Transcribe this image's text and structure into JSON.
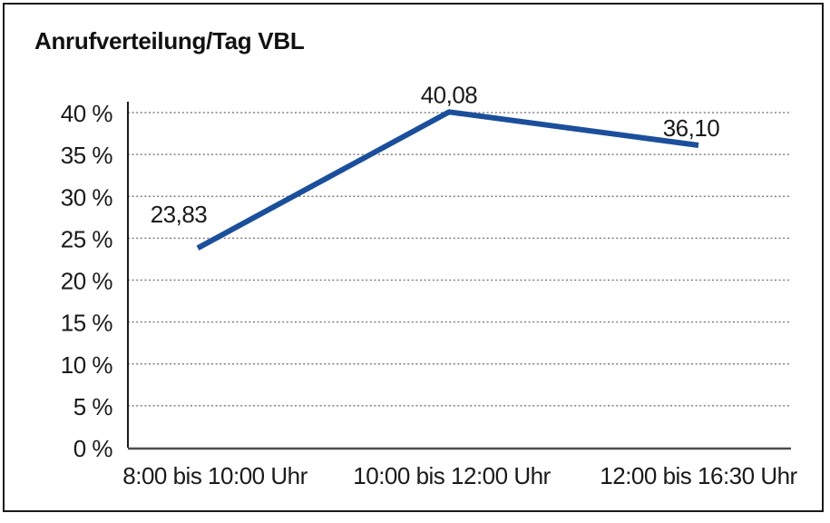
{
  "window": {
    "background_color": "#ffffff",
    "frame_border_color": "#1a1a1a"
  },
  "chart_data": {
    "type": "line",
    "title": "Anrufverteilung/Tag VBL",
    "categories": [
      "8:00 bis 10:00 Uhr",
      "10:00 bis 12:00 Uhr",
      "12:00 bis 16:30 Uhr"
    ],
    "series": [
      {
        "name": "Anrufverteilung/Tag VBL",
        "values": [
          23.83,
          40.08,
          36.1
        ],
        "point_labels": [
          "23,83",
          "40,08",
          "36,10"
        ],
        "color": "#1b4f9b"
      }
    ],
    "xlabel": "",
    "ylabel": "",
    "unit": "%",
    "ylim": [
      0,
      40
    ],
    "ytick_step": 5,
    "ytick_labels": [
      "0 %",
      "5 %",
      "10 %",
      "15 %",
      "20 %",
      "25 %",
      "30 %",
      "35 %",
      "40 %"
    ],
    "grid": "horizontal-dotted",
    "legend": "none",
    "gridline_color": "#808080",
    "y_axis_color": "#1a1a1a",
    "x_axis_color": "#4d4d4d",
    "text_color": "#1a1a1a"
  }
}
